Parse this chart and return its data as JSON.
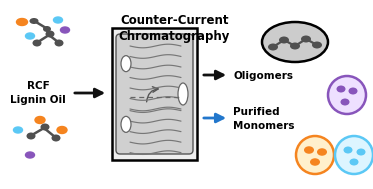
{
  "title": "Counter-Current\nChromatography",
  "title_fontsize": 8.5,
  "title_fontweight": "bold",
  "label_rcf": "RCF\nLignin Oil",
  "label_oligomers": "Oligomers",
  "label_monomers": "Purified\nMonomers",
  "label_fontsize": 7.5,
  "label_fontweight": "bold",
  "bg_color": "#ffffff",
  "orange": "#F5841F",
  "cyan": "#5BC8F5",
  "purple": "#8855BB",
  "dark_gray": "#505050",
  "arrow_black": "#111111",
  "arrow_blue": "#2277CC",
  "oligomer_bg": "#CCCCCC",
  "drum_face": "#D8D8D8",
  "drum_edge": "#444444"
}
